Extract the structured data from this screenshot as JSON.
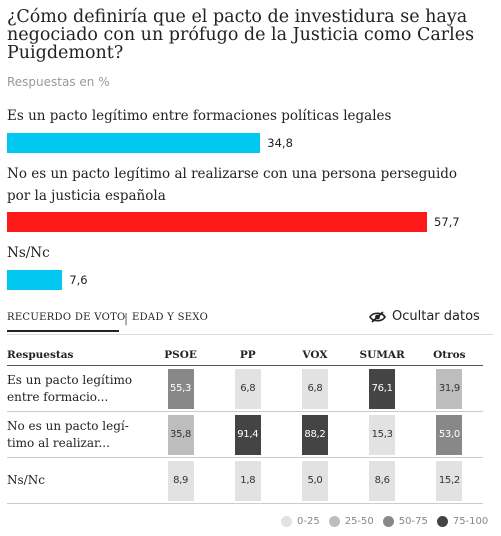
{
  "header": {
    "title": "¿Cómo definiría que el pacto de investidura se haya negociado con un prófugo de la Justicia como Carles Puigdemont?",
    "subtitle": "Respuestas en %"
  },
  "colors": {
    "bar_blue": "#00c8f0",
    "bar_red": "#ff1a1a",
    "range_0_25": "#e2e2e2",
    "range_25_50": "#bdbdbd",
    "range_50_75": "#888888",
    "range_75_100": "#444444"
  },
  "tabs": {
    "active": "RECUERDO DE VOTO",
    "separator": "|",
    "second": "EDAD Y SEXO"
  },
  "toggle": {
    "label": "Ocultar datos",
    "icon": "eye-slash-icon"
  },
  "chart_data": [
    {
      "type": "bar",
      "orientation": "horizontal",
      "title": "¿Cómo definiría que el pacto de investidura se haya negociado con un prófugo de la Justicia como Carles Puigdemont?",
      "subtitle": "Respuestas en %",
      "categories": [
        "Es un pacto legítimo entre formaciones políticas legales",
        "No es un pacto legítimo al realizarse con una persona perseguido por la justicia española",
        "Ns/Nc"
      ],
      "values": [
        34.8,
        57.7,
        7.6
      ],
      "value_labels": [
        "34,8",
        "57,7",
        "7,6"
      ],
      "bar_colors": [
        "#00c8f0",
        "#ff1a1a",
        "#00c8f0"
      ],
      "xlim": [
        0,
        60
      ]
    },
    {
      "type": "heatmap",
      "row_header": "Respuestas",
      "columns": [
        "PSOE",
        "PP",
        "VOX",
        "SUMAR",
        "Otros"
      ],
      "rows": [
        {
          "label": "Es un pacto legítimo entre formacio...",
          "values": [
            55.3,
            6.8,
            6.8,
            76.1,
            31.9
          ],
          "value_labels": [
            "55,3",
            "6,8",
            "6,8",
            "76,1",
            "31,9"
          ]
        },
        {
          "label": "No es un pacto legí-timo al realizar...",
          "values": [
            35.8,
            91.4,
            88.2,
            15.3,
            53.0
          ],
          "value_labels": [
            "35,8",
            "91,4",
            "88,2",
            "15,3",
            "53,0"
          ]
        },
        {
          "label": "Ns/Nc",
          "values": [
            8.9,
            1.8,
            5.0,
            8.6,
            15.2
          ],
          "value_labels": [
            "8,9",
            "1,8",
            "5,0",
            "8,6",
            "15,2"
          ]
        }
      ],
      "legend": [
        "0-25",
        "25-50",
        "50-75",
        "75-100"
      ],
      "legend_placement": "bottom-right"
    }
  ]
}
